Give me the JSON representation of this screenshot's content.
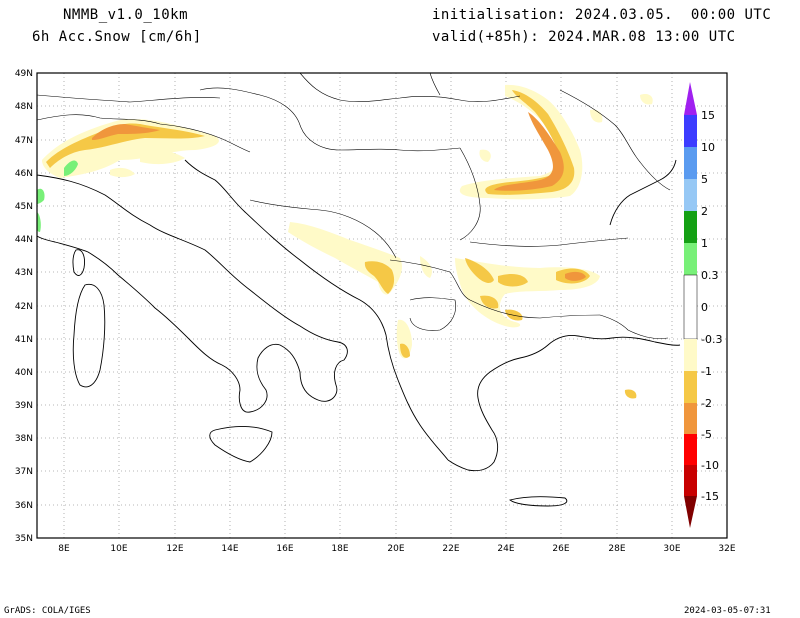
{
  "header": {
    "model": "NMMB_v1.0_10km",
    "variable": "6h Acc.Snow [cm/6h]",
    "init": "initialisation: 2024.03.05.  00:00 UTC",
    "valid": "valid(+85h): 2024.MAR.08 13:00 UTC"
  },
  "footer": {
    "left": "GrADS: COLA/IGES",
    "right": "2024-03-05-07:31"
  },
  "axes": {
    "lon_ticks": [
      "8E",
      "10E",
      "12E",
      "14E",
      "16E",
      "18E",
      "20E",
      "22E",
      "24E",
      "26E",
      "28E",
      "30E",
      "32E"
    ],
    "lat_ticks": [
      "49N",
      "48N",
      "47N",
      "46N",
      "45N",
      "44N",
      "43N",
      "42N",
      "41N",
      "40N",
      "39N",
      "38N",
      "37N",
      "36N",
      "35N"
    ]
  },
  "colorbar": {
    "labels": [
      "15",
      "10",
      "5",
      "2",
      "1",
      "0.3",
      "0",
      "-0.3",
      "-1",
      "-2",
      "-5",
      "-10",
      "-15"
    ],
    "colors": {
      "purple": "#a020f0",
      "blue1": "#3c3cff",
      "blue2": "#5a9bf0",
      "blue3": "#96c8f5",
      "green1": "#14a014",
      "green2": "#78f078",
      "cream": "#fffac8",
      "yellow": "#f5c846",
      "orange": "#f0963c",
      "red1": "#ff0000",
      "red2": "#c80000",
      "red3": "#800000"
    }
  }
}
